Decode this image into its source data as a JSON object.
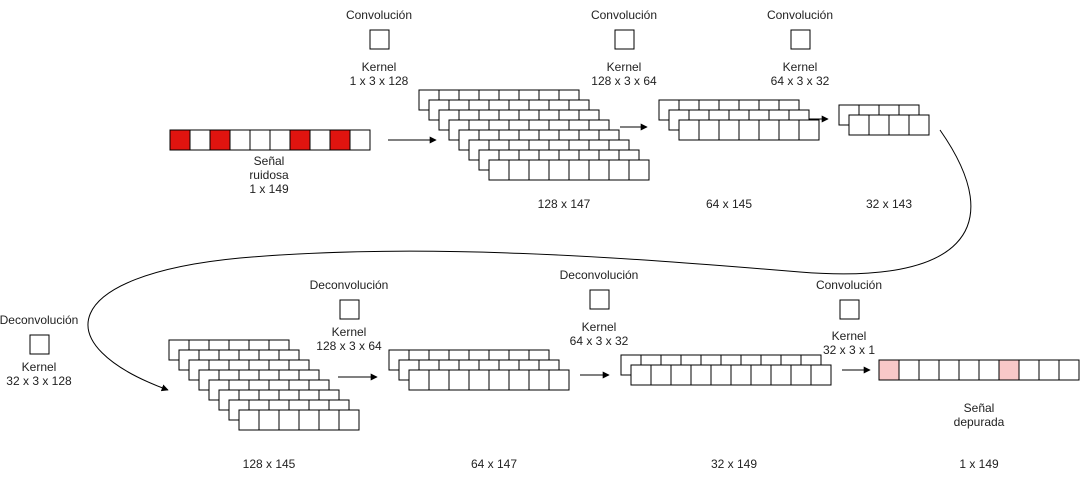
{
  "colors": {
    "stroke": "#000000",
    "cell": "#ffffff",
    "noisy": "#e0140f",
    "clean": "#f8c8c8"
  },
  "input": {
    "label_lines": [
      "Señal",
      "ruidosa",
      "1 x 149"
    ],
    "cells": 10,
    "highlighted": [
      0,
      2,
      6,
      8
    ]
  },
  "output": {
    "label_lines": [
      "Señal",
      "depurada"
    ],
    "dim": "1 x 149",
    "cells": 10,
    "highlighted": [
      0,
      6
    ]
  },
  "ops": [
    {
      "title": "Convolución",
      "kernel_lines": [
        "Kernel",
        "1 x 3 x 128"
      ]
    },
    {
      "title": "Convolución",
      "kernel_lines": [
        "Kernel",
        "128 x 3 x 64"
      ]
    },
    {
      "title": "Convolución",
      "kernel_lines": [
        "Kernel",
        "64 x 3 x 32"
      ]
    },
    {
      "title": "Deconvolución",
      "kernel_lines": [
        "Kernel",
        "32 x 3 x 128"
      ]
    },
    {
      "title": "Deconvolución",
      "kernel_lines": [
        "Kernel",
        "128 x 3 x 64"
      ]
    },
    {
      "title": "Deconvolución",
      "kernel_lines": [
        "Kernel",
        "64 x 3 x 32"
      ]
    },
    {
      "title": "Convolución",
      "kernel_lines": [
        "Kernel",
        "32 x 3 x 1"
      ]
    }
  ],
  "stacks": [
    {
      "dim": "128 x 147",
      "layers": 8,
      "cells": 8
    },
    {
      "dim": "64 x 145",
      "layers": 3,
      "cells": 7
    },
    {
      "dim": "32 x 143",
      "layers": 2,
      "cells": 4
    },
    {
      "dim": "128 x 145",
      "layers": 8,
      "cells": 6
    },
    {
      "dim": "64 x 147",
      "layers": 3,
      "cells": 8
    },
    {
      "dim": "32 x 149",
      "layers": 2,
      "cells": 10
    }
  ]
}
